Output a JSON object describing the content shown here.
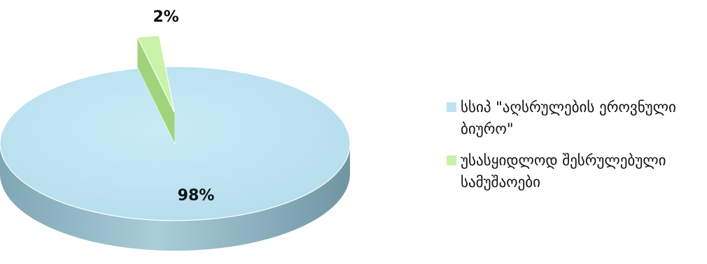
{
  "chart_data": {
    "type": "pie",
    "categories": [
      "სსიპ \"აღსრულების ეროვნული ბიურო\"",
      "უსასყიდლოდ შესრულებული სამუშაოები"
    ],
    "values": [
      98,
      2
    ],
    "data_labels": [
      "98%",
      "2%"
    ],
    "colors": [
      "#bfe3f1",
      "#c8f3a8"
    ],
    "legend_position": "right",
    "style": "3d-exploded"
  },
  "legend": {
    "items": [
      {
        "label": "სსიპ \"აღსრულების ეროვნული ბიურო\"",
        "color": "#bfe3f1"
      },
      {
        "label": "უსასყიდლოდ შესრულებული სამუშაოები",
        "color": "#c8f3a8"
      }
    ]
  }
}
